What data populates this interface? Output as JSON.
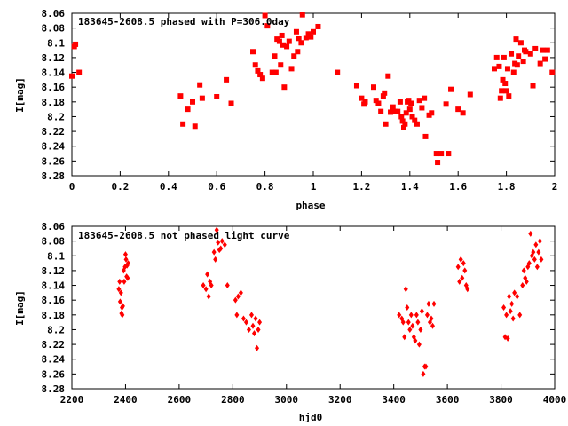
{
  "colors": {
    "points": "#ff0000",
    "axes": "#000000",
    "background": "#ffffff"
  },
  "chart_data": [
    {
      "type": "scatter",
      "title": "183645-2608.5 phased with P=306.0day",
      "xlabel": "phase",
      "ylabel": "I[mag]",
      "xlim": [
        0,
        2
      ],
      "ylim": [
        8.06,
        8.28
      ],
      "y_inverted": true,
      "grid": false,
      "marker": "square",
      "x_ticks": [
        "0",
        "0.2",
        "0.4",
        "0.6",
        "0.8",
        "1",
        "1.2",
        "1.4",
        "1.6",
        "1.8",
        "2"
      ],
      "y_ticks": [
        "8.06",
        "8.08",
        "8.1",
        "8.12",
        "8.14",
        "8.16",
        "8.18",
        "8.2",
        "8.22",
        "8.24",
        "8.26",
        "8.28"
      ],
      "points": [
        [
          0.0,
          8.145
        ],
        [
          0.01,
          8.105
        ],
        [
          0.015,
          8.102
        ],
        [
          0.03,
          8.14
        ],
        [
          0.45,
          8.172
        ],
        [
          0.46,
          8.21
        ],
        [
          0.48,
          8.19
        ],
        [
          0.5,
          8.18
        ],
        [
          0.51,
          8.213
        ],
        [
          0.53,
          8.157
        ],
        [
          0.54,
          8.175
        ],
        [
          0.6,
          8.173
        ],
        [
          0.64,
          8.15
        ],
        [
          0.66,
          8.182
        ],
        [
          0.75,
          8.112
        ],
        [
          0.76,
          8.13
        ],
        [
          0.77,
          8.138
        ],
        [
          0.78,
          8.143
        ],
        [
          0.79,
          8.148
        ],
        [
          0.8,
          8.063
        ],
        [
          0.81,
          8.077
        ],
        [
          0.83,
          8.14
        ],
        [
          0.84,
          8.118
        ],
        [
          0.845,
          8.14
        ],
        [
          0.85,
          8.095
        ],
        [
          0.86,
          8.098
        ],
        [
          0.865,
          8.13
        ],
        [
          0.87,
          8.09
        ],
        [
          0.875,
          8.103
        ],
        [
          0.88,
          8.16
        ],
        [
          0.89,
          8.105
        ],
        [
          0.9,
          8.098
        ],
        [
          0.91,
          8.135
        ],
        [
          0.92,
          8.118
        ],
        [
          0.93,
          8.085
        ],
        [
          0.935,
          8.112
        ],
        [
          0.94,
          8.094
        ],
        [
          0.95,
          8.1
        ],
        [
          0.955,
          8.062
        ],
        [
          0.97,
          8.093
        ],
        [
          0.98,
          8.088
        ],
        [
          0.99,
          8.092
        ],
        [
          1.0,
          8.085
        ],
        [
          1.02,
          8.078
        ],
        [
          1.1,
          8.14
        ],
        [
          1.18,
          8.158
        ],
        [
          1.2,
          8.175
        ],
        [
          1.21,
          8.183
        ],
        [
          1.215,
          8.18
        ],
        [
          1.25,
          8.16
        ],
        [
          1.26,
          8.178
        ],
        [
          1.27,
          8.182
        ],
        [
          1.28,
          8.193
        ],
        [
          1.29,
          8.172
        ],
        [
          1.295,
          8.168
        ],
        [
          1.3,
          8.21
        ],
        [
          1.31,
          8.145
        ],
        [
          1.32,
          8.194
        ],
        [
          1.33,
          8.187
        ],
        [
          1.34,
          8.193
        ],
        [
          1.35,
          8.193
        ],
        [
          1.36,
          8.18
        ],
        [
          1.365,
          8.2
        ],
        [
          1.37,
          8.206
        ],
        [
          1.375,
          8.215
        ],
        [
          1.38,
          8.21
        ],
        [
          1.385,
          8.195
        ],
        [
          1.39,
          8.18
        ],
        [
          1.395,
          8.178
        ],
        [
          1.4,
          8.19
        ],
        [
          1.405,
          8.182
        ],
        [
          1.41,
          8.2
        ],
        [
          1.42,
          8.205
        ],
        [
          1.43,
          8.21
        ],
        [
          1.44,
          8.178
        ],
        [
          1.45,
          8.188
        ],
        [
          1.46,
          8.175
        ],
        [
          1.465,
          8.227
        ],
        [
          1.48,
          8.198
        ],
        [
          1.49,
          8.195
        ],
        [
          1.51,
          8.25
        ],
        [
          1.515,
          8.262
        ],
        [
          1.53,
          8.25
        ],
        [
          1.55,
          8.183
        ],
        [
          1.56,
          8.25
        ],
        [
          1.57,
          8.163
        ],
        [
          1.6,
          8.19
        ],
        [
          1.62,
          8.195
        ],
        [
          1.65,
          8.17
        ],
        [
          1.75,
          8.135
        ],
        [
          1.76,
          8.12
        ],
        [
          1.77,
          8.132
        ],
        [
          1.775,
          8.175
        ],
        [
          1.78,
          8.165
        ],
        [
          1.785,
          8.15
        ],
        [
          1.79,
          8.12
        ],
        [
          1.795,
          8.155
        ],
        [
          1.8,
          8.165
        ],
        [
          1.805,
          8.135
        ],
        [
          1.81,
          8.172
        ],
        [
          1.82,
          8.115
        ],
        [
          1.83,
          8.14
        ],
        [
          1.835,
          8.128
        ],
        [
          1.84,
          8.095
        ],
        [
          1.845,
          8.13
        ],
        [
          1.85,
          8.118
        ],
        [
          1.86,
          8.1
        ],
        [
          1.87,
          8.125
        ],
        [
          1.875,
          8.11
        ],
        [
          1.88,
          8.112
        ],
        [
          1.9,
          8.115
        ],
        [
          1.91,
          8.158
        ],
        [
          1.92,
          8.108
        ],
        [
          1.94,
          8.128
        ],
        [
          1.95,
          8.11
        ],
        [
          1.96,
          8.122
        ],
        [
          1.97,
          8.11
        ],
        [
          1.99,
          8.14
        ]
      ]
    },
    {
      "type": "scatter",
      "title": "183645-2608.5 not phased light curve",
      "xlabel": "hjd0",
      "ylabel": "I[mag]",
      "xlim": [
        2200,
        4000
      ],
      "ylim": [
        8.06,
        8.28
      ],
      "y_inverted": true,
      "grid": false,
      "marker": "diamond",
      "x_ticks": [
        "2200",
        "2400",
        "2600",
        "2800",
        "3000",
        "3200",
        "3400",
        "3600",
        "3800",
        "4000"
      ],
      "y_ticks": [
        "8.06",
        "8.08",
        "8.1",
        "8.12",
        "8.14",
        "8.16",
        "8.18",
        "8.2",
        "8.22",
        "8.24",
        "8.26",
        "8.28"
      ],
      "points": [
        [
          2375,
          8.145
        ],
        [
          2378,
          8.135
        ],
        [
          2380,
          8.162
        ],
        [
          2383,
          8.15
        ],
        [
          2385,
          8.178
        ],
        [
          2387,
          8.17
        ],
        [
          2388,
          8.18
        ],
        [
          2390,
          8.168
        ],
        [
          2393,
          8.12
        ],
        [
          2395,
          8.135
        ],
        [
          2398,
          8.115
        ],
        [
          2400,
          8.098
        ],
        [
          2402,
          8.105
        ],
        [
          2404,
          8.128
        ],
        [
          2406,
          8.113
        ],
        [
          2408,
          8.13
        ],
        [
          2410,
          8.11
        ],
        [
          2690,
          8.14
        ],
        [
          2700,
          8.145
        ],
        [
          2705,
          8.125
        ],
        [
          2710,
          8.155
        ],
        [
          2715,
          8.135
        ],
        [
          2720,
          8.14
        ],
        [
          2730,
          8.095
        ],
        [
          2735,
          8.105
        ],
        [
          2740,
          8.065
        ],
        [
          2745,
          8.082
        ],
        [
          2750,
          8.092
        ],
        [
          2755,
          8.09
        ],
        [
          2760,
          8.08
        ],
        [
          2770,
          8.085
        ],
        [
          2780,
          8.14
        ],
        [
          2810,
          8.16
        ],
        [
          2815,
          8.18
        ],
        [
          2820,
          8.155
        ],
        [
          2830,
          8.15
        ],
        [
          2840,
          8.185
        ],
        [
          2850,
          8.19
        ],
        [
          2860,
          8.2
        ],
        [
          2870,
          8.18
        ],
        [
          2875,
          8.195
        ],
        [
          2880,
          8.205
        ],
        [
          2885,
          8.185
        ],
        [
          2890,
          8.225
        ],
        [
          2895,
          8.2
        ],
        [
          2900,
          8.19
        ],
        [
          3420,
          8.18
        ],
        [
          3430,
          8.185
        ],
        [
          3435,
          8.19
        ],
        [
          3440,
          8.21
        ],
        [
          3445,
          8.145
        ],
        [
          3450,
          8.17
        ],
        [
          3455,
          8.19
        ],
        [
          3460,
          8.2
        ],
        [
          3465,
          8.18
        ],
        [
          3470,
          8.195
        ],
        [
          3475,
          8.21
        ],
        [
          3480,
          8.215
        ],
        [
          3485,
          8.18
        ],
        [
          3490,
          8.19
        ],
        [
          3495,
          8.22
        ],
        [
          3500,
          8.2
        ],
        [
          3505,
          8.175
        ],
        [
          3510,
          8.26
        ],
        [
          3515,
          8.25
        ],
        [
          3520,
          8.25
        ],
        [
          3525,
          8.18
        ],
        [
          3530,
          8.165
        ],
        [
          3535,
          8.19
        ],
        [
          3540,
          8.185
        ],
        [
          3545,
          8.195
        ],
        [
          3550,
          8.165
        ],
        [
          3640,
          8.115
        ],
        [
          3645,
          8.135
        ],
        [
          3650,
          8.105
        ],
        [
          3655,
          8.13
        ],
        [
          3660,
          8.11
        ],
        [
          3665,
          8.12
        ],
        [
          3670,
          8.14
        ],
        [
          3675,
          8.145
        ],
        [
          3810,
          8.17
        ],
        [
          3815,
          8.21
        ],
        [
          3820,
          8.18
        ],
        [
          3825,
          8.212
        ],
        [
          3830,
          8.155
        ],
        [
          3835,
          8.175
        ],
        [
          3840,
          8.165
        ],
        [
          3845,
          8.185
        ],
        [
          3850,
          8.15
        ],
        [
          3860,
          8.155
        ],
        [
          3870,
          8.18
        ],
        [
          3880,
          8.14
        ],
        [
          3885,
          8.12
        ],
        [
          3890,
          8.13
        ],
        [
          3895,
          8.135
        ],
        [
          3900,
          8.115
        ],
        [
          3905,
          8.11
        ],
        [
          3910,
          8.07
        ],
        [
          3915,
          8.1
        ],
        [
          3920,
          8.095
        ],
        [
          3925,
          8.105
        ],
        [
          3930,
          8.085
        ],
        [
          3935,
          8.115
        ],
        [
          3940,
          8.095
        ],
        [
          3945,
          8.08
        ],
        [
          3950,
          8.105
        ]
      ]
    }
  ]
}
